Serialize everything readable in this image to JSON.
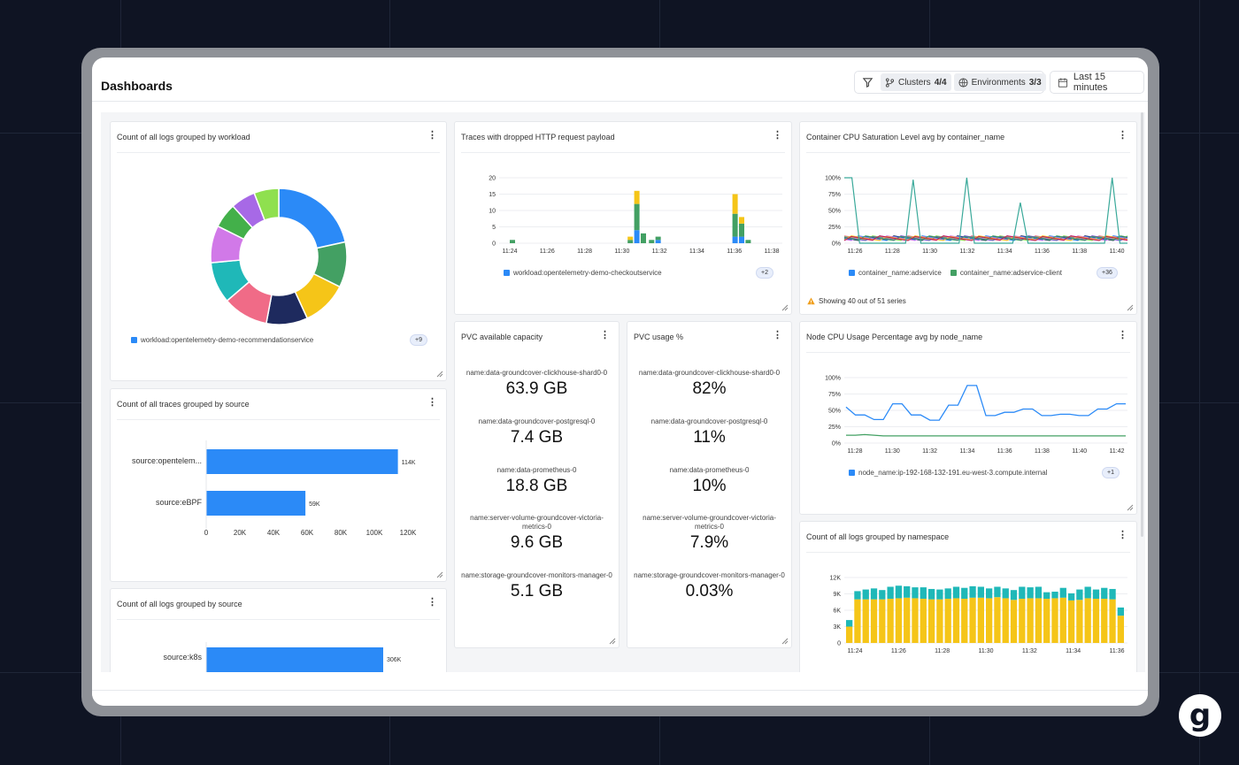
{
  "header": {
    "title": "Dashboards",
    "clusters_label": "Clusters",
    "clusters_count": "4/4",
    "environments_label": "Environments",
    "environments_count": "3/3",
    "time_range": "Last 15 minutes"
  },
  "panels": {
    "logs_by_workload": {
      "title": "Count of all logs grouped by workload",
      "legend": "workload:opentelemetry-demo-recommendationservice",
      "more": "+9"
    },
    "traces_dropped": {
      "title": "Traces with dropped HTTP request payload",
      "legend": "workload:opentelemetry-demo-checkoutservice",
      "more": "+2"
    },
    "cpu_saturation": {
      "title": "Container CPU Saturation Level avg by container_name",
      "legend1": "container_name:adservice",
      "legend2": "container_name:adservice-client",
      "more": "+36",
      "warning": "Showing 40 out of 51 series"
    },
    "traces_by_source": {
      "title": "Count of all traces grouped by source"
    },
    "pvc_available": {
      "title": "PVC available capacity",
      "items": [
        {
          "label": "name:data-groundcover-clickhouse-shard0-0",
          "value": "63.9 GB"
        },
        {
          "label": "name:data-groundcover-postgresql-0",
          "value": "7.4 GB"
        },
        {
          "label": "name:data-prometheus-0",
          "value": "18.8 GB"
        },
        {
          "label": "name:server-volume-groundcover-victoria-metrics-0",
          "value": "9.6 GB"
        },
        {
          "label": "name:storage-groundcover-monitors-manager-0",
          "value": "5.1 GB"
        }
      ]
    },
    "pvc_usage": {
      "title": "PVC usage %",
      "items": [
        {
          "label": "name:data-groundcover-clickhouse-shard0-0",
          "value": "82%"
        },
        {
          "label": "name:data-groundcover-postgresql-0",
          "value": "11%"
        },
        {
          "label": "name:data-prometheus-0",
          "value": "10%"
        },
        {
          "label": "name:server-volume-groundcover-victoria-metrics-0",
          "value": "7.9%"
        },
        {
          "label": "name:storage-groundcover-monitors-manager-0",
          "value": "0.03%"
        }
      ]
    },
    "node_cpu": {
      "title": "Node CPU Usage Percentage avg by node_name",
      "legend": "node_name:ip-192-168-132-191.eu-west-3.compute.internal",
      "more": "+1"
    },
    "logs_by_source": {
      "title": "Count of all logs grouped by source"
    },
    "logs_by_namespace": {
      "title": "Count of all logs grouped by namespace"
    }
  },
  "colors": {
    "blue": "#2b8af7",
    "green": "#43a063",
    "yellow": "#f5c518",
    "teal": "#1fb8b8",
    "navy": "#1e2a5e",
    "pink": "#f06b87",
    "purple": "#a769e6",
    "lightgreen": "#8fe04f"
  },
  "chart_data": [
    {
      "id": "logs_by_workload",
      "type": "pie",
      "slices": [
        {
          "name": "workload:opentelemetry-demo-recommendationservice",
          "value": 22,
          "color": "#2b8af7"
        },
        {
          "name": "",
          "value": 11,
          "color": "#43a063"
        },
        {
          "name": "",
          "value": 11,
          "color": "#f5c518"
        },
        {
          "name": "",
          "value": 10,
          "color": "#1e2a5e"
        },
        {
          "name": "",
          "value": 11,
          "color": "#f06b87"
        },
        {
          "name": "",
          "value": 10,
          "color": "#1fb8b8"
        },
        {
          "name": "",
          "value": 9,
          "color": "#d179e8"
        },
        {
          "name": "",
          "value": 6,
          "color": "#43b04a"
        },
        {
          "name": "",
          "value": 6,
          "color": "#a769e6"
        },
        {
          "name": "",
          "value": 6,
          "color": "#8fe04f"
        }
      ]
    },
    {
      "id": "traces_dropped",
      "type": "bar",
      "x_ticks": [
        "11:24",
        "11:26",
        "11:28",
        "11:30",
        "11:32",
        "11:34",
        "11:36",
        "11:38"
      ],
      "y_ticks": [
        "0",
        "5",
        "10",
        "15",
        "20"
      ],
      "ylim": [
        0,
        20
      ],
      "bars": [
        {
          "t": 0.0,
          "blue": 0,
          "green": 1,
          "yellow": 0
        },
        {
          "t": 7.2,
          "blue": 0,
          "green": 1,
          "yellow": 1
        },
        {
          "t": 7.6,
          "blue": 4,
          "green": 8,
          "yellow": 4
        },
        {
          "t": 8.0,
          "blue": 0,
          "green": 3,
          "yellow": 0
        },
        {
          "t": 8.5,
          "blue": 0,
          "green": 1,
          "yellow": 0
        },
        {
          "t": 8.9,
          "blue": 1,
          "green": 1,
          "yellow": 0
        },
        {
          "t": 13.6,
          "blue": 2,
          "green": 7,
          "yellow": 6
        },
        {
          "t": 14.0,
          "blue": 2,
          "green": 4,
          "yellow": 2
        },
        {
          "t": 14.4,
          "blue": 0,
          "green": 1,
          "yellow": 0
        }
      ]
    },
    {
      "id": "cpu_saturation",
      "type": "line",
      "x_ticks": [
        "11:26",
        "11:28",
        "11:30",
        "11:32",
        "11:34",
        "11:36",
        "11:38",
        "11:40"
      ],
      "y_ticks": [
        "0%",
        "25%",
        "50%",
        "75%",
        "100%"
      ],
      "ylim": [
        0,
        100
      ],
      "teal_series": [
        100,
        100,
        0,
        0,
        0,
        0,
        0,
        0,
        0,
        97,
        0,
        0,
        0,
        0,
        0,
        0,
        100,
        0,
        0,
        0,
        0,
        0,
        0,
        62,
        0,
        0,
        0,
        0,
        0,
        0,
        0,
        0,
        0,
        0,
        0,
        100,
        0,
        0
      ]
    },
    {
      "id": "traces_by_source",
      "type": "bar",
      "orientation": "horizontal",
      "categories": [
        "source:opentelem...",
        "source:eBPF"
      ],
      "values": [
        114000,
        59000
      ],
      "data_labels": [
        "114K",
        "59K"
      ],
      "x_ticks": [
        "0",
        "20K",
        "40K",
        "60K",
        "80K",
        "100K",
        "120K"
      ],
      "xlim": [
        0,
        120000
      ]
    },
    {
      "id": "node_cpu",
      "type": "line",
      "x_ticks": [
        "11:28",
        "11:30",
        "11:32",
        "11:34",
        "11:36",
        "11:38",
        "11:40",
        "11:42"
      ],
      "y_ticks": [
        "0%",
        "25%",
        "50%",
        "75%",
        "100%"
      ],
      "ylim": [
        0,
        100
      ],
      "series": [
        {
          "name": "node_name:ip-192-168-132-191.eu-west-3.compute.internal",
          "color": "#2b8af7",
          "values": [
            55,
            43,
            43,
            36,
            36,
            60,
            60,
            43,
            43,
            35,
            35,
            58,
            58,
            88,
            88,
            42,
            42,
            47,
            47,
            52,
            52,
            42,
            42,
            44,
            44,
            42,
            42,
            52,
            52,
            60,
            60
          ]
        },
        {
          "name": "",
          "color": "#43a063",
          "values": [
            12,
            12,
            13,
            12,
            11,
            11,
            11,
            11,
            11,
            11,
            11,
            11,
            11,
            11,
            11,
            11,
            11,
            11,
            11,
            11,
            11,
            11,
            11,
            11,
            11,
            11,
            11,
            11,
            11,
            11,
            11
          ]
        }
      ]
    },
    {
      "id": "logs_by_source",
      "type": "bar",
      "orientation": "horizontal",
      "categories": [
        "source:k8s"
      ],
      "values": [
        306000
      ],
      "data_labels": [
        "306K"
      ]
    },
    {
      "id": "logs_by_namespace",
      "type": "bar",
      "x_ticks": [
        "11:24",
        "11:26",
        "11:28",
        "11:30",
        "11:32",
        "11:34",
        "11:36"
      ],
      "y_ticks": [
        "0",
        "3K",
        "6K",
        "9K",
        "12K"
      ],
      "ylim": [
        0,
        12000
      ],
      "yellow": [
        3000,
        8000,
        8000,
        8000,
        8000,
        8100,
        8200,
        8300,
        8200,
        8100,
        8000,
        8000,
        8100,
        8200,
        8100,
        8300,
        8300,
        8200,
        8400,
        8200,
        7900,
        8100,
        8200,
        8200,
        8100,
        8200,
        8300,
        7800,
        7900,
        8200,
        8100,
        8100,
        8000,
        5000
      ],
      "teal": [
        1200,
        1500,
        1800,
        2000,
        1700,
        2200,
        2300,
        2100,
        2000,
        2100,
        1900,
        1800,
        1900,
        2100,
        2000,
        2100,
        2000,
        1800,
        1900,
        1800,
        1800,
        2200,
        2000,
        2100,
        1200,
        1200,
        1800,
        1300,
        1900,
        2100,
        1700,
        2000,
        1900,
        1500
      ]
    }
  ]
}
